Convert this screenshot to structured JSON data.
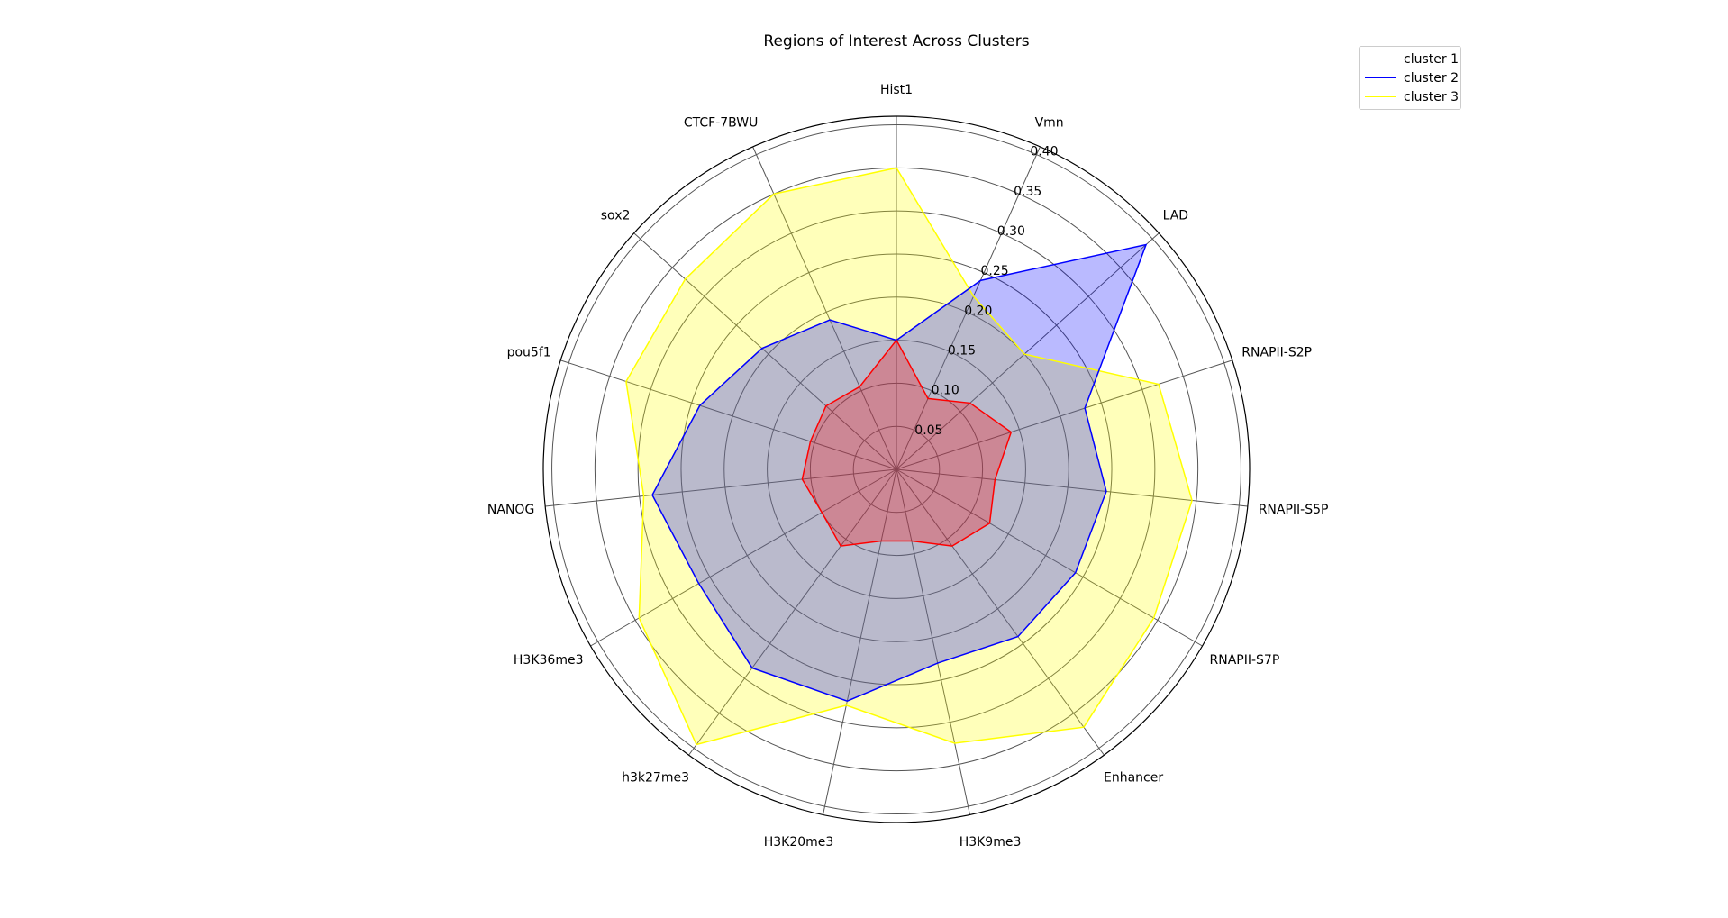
{
  "chart_data": {
    "type": "radar",
    "title": "Regions of Interest Across Clusters",
    "categories": [
      "Hist1",
      "Vmn",
      "LAD",
      "RNAPII-S2P",
      "RNAPII-S5P",
      "RNAPII-S7P",
      "Enhancer",
      "H3K9me3",
      "H3K20me3",
      "h3k27me3",
      "H3K36me3",
      "NANOG",
      "pou5f1",
      "sox2",
      "CTCF-7BWU"
    ],
    "radial_ticks": [
      0.05,
      0.1,
      0.15,
      0.2,
      0.25,
      0.3,
      0.35,
      0.4
    ],
    "radial_tick_labels": [
      "0.05",
      "0.10",
      "0.15",
      "0.20",
      "0.25",
      "0.30",
      "0.35",
      "0.40"
    ],
    "rlim": [
      0,
      0.41
    ],
    "grid": true,
    "legend_position": "top-right",
    "series": [
      {
        "name": "cluster 1",
        "color": "#ff0000",
        "fill": "#ff0000",
        "values": [
          0.15,
          0.09,
          0.115,
          0.14,
          0.115,
          0.125,
          0.11,
          0.085,
          0.085,
          0.11,
          0.1,
          0.11,
          0.105,
          0.11,
          0.105
        ]
      },
      {
        "name": "cluster 2",
        "color": "#0000ff",
        "fill": "#0000ff",
        "values": [
          0.15,
          0.24,
          0.39,
          0.23,
          0.245,
          0.24,
          0.24,
          0.23,
          0.275,
          0.285,
          0.265,
          0.285,
          0.24,
          0.21,
          0.19
        ]
      },
      {
        "name": "cluster 3",
        "color": "#ffff00",
        "fill": "#ffff00",
        "values": [
          0.35,
          0.22,
          0.2,
          0.32,
          0.345,
          0.345,
          0.37,
          0.325,
          0.28,
          0.395,
          0.345,
          0.295,
          0.33,
          0.33,
          0.35
        ]
      }
    ]
  }
}
